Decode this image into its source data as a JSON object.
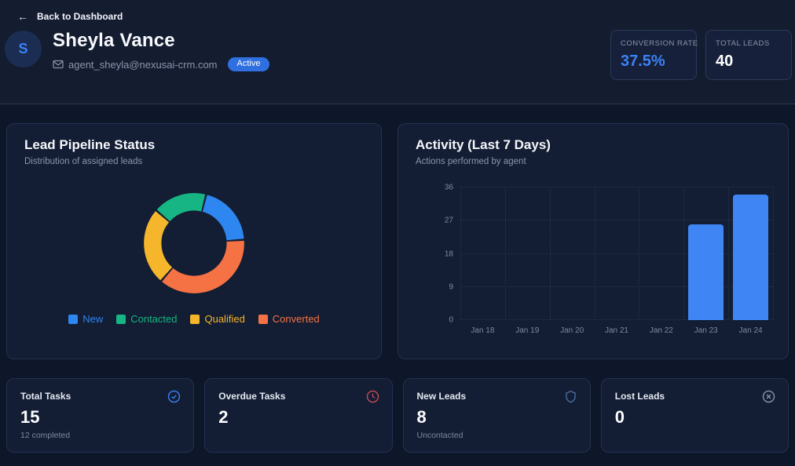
{
  "topbar": {
    "back_label": "Back to Dashboard"
  },
  "profile": {
    "avatar_initial": "S",
    "name": "Sheyla Vance",
    "email": "agent_sheyla@nexusai-crm.com",
    "status_badge": "Active"
  },
  "metrics": [
    {
      "label": "CONVERSION RATE",
      "value": "37.5%",
      "value_color": "#3b82f6"
    },
    {
      "label": "TOTAL LEADS",
      "value": "40",
      "value_color": "#ffffff"
    }
  ],
  "chart_data": [
    {
      "type": "donut",
      "title": "Lead Pipeline Status",
      "subtitle": "Distribution of assigned leads",
      "total": 40,
      "segments": [
        {
          "label": "New",
          "value": 8,
          "color": "#2e86f0"
        },
        {
          "label": "Contacted",
          "value": 7,
          "color": "#16b583"
        },
        {
          "label": "Qualified",
          "value": 10,
          "color": "#f5b62b"
        },
        {
          "label": "Converted",
          "value": 15,
          "color": "#f57244"
        }
      ],
      "draw_order": [
        "New",
        "Converted",
        "Qualified",
        "Contacted"
      ],
      "rotation_deg": 14,
      "legend_position": "bottom"
    },
    {
      "type": "bar",
      "title": "Activity (Last 7 Days)",
      "subtitle": "Actions performed by agent",
      "categories": [
        "Jan 18",
        "Jan 19",
        "Jan 20",
        "Jan 21",
        "Jan 22",
        "Jan 23",
        "Jan 24"
      ],
      "values": [
        0,
        0,
        0,
        0,
        0,
        26,
        34
      ],
      "xlabel": "",
      "ylabel": "",
      "ylim": [
        0,
        36
      ],
      "y_ticks": [
        0,
        9,
        18,
        27,
        36
      ],
      "bar_color": "#3f86f4",
      "grid": "dotted"
    }
  ],
  "stats": [
    {
      "title": "Total Tasks",
      "value": "15",
      "subtitle": "12 completed",
      "icon": "check-circle-icon",
      "icon_color": "#3b82f6"
    },
    {
      "title": "Overdue Tasks",
      "value": "2",
      "subtitle": "",
      "icon": "clock-icon",
      "icon_color": "#c94a58"
    },
    {
      "title": "New Leads",
      "value": "8",
      "subtitle": "Uncontacted",
      "icon": "shield-icon",
      "icon_color": "#4d6fa5"
    },
    {
      "title": "Lost Leads",
      "value": "0",
      "subtitle": "",
      "icon": "x-circle-icon",
      "icon_color": "#8b96ab"
    }
  ],
  "colors": {
    "accent": "#3b82f6",
    "badge_bg": "#2f6fe0",
    "page_bg": "#0e1729",
    "header_bg": "#141c30",
    "card_bg": "#131d33",
    "card_border": "#243150",
    "muted_text": "#8b96ab",
    "grid_line": "#28344f"
  }
}
